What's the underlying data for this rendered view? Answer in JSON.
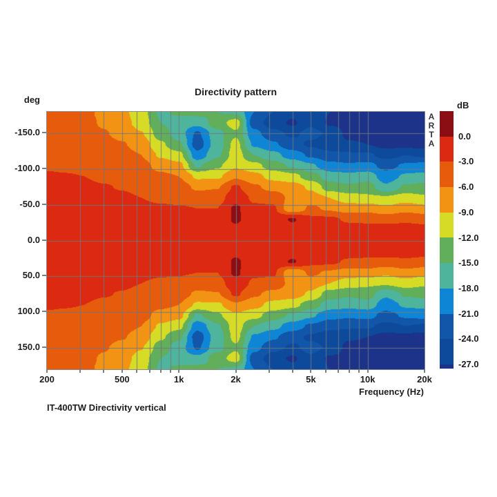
{
  "page": {
    "background": "#ffffff"
  },
  "header": {
    "title": "Directivity pattern"
  },
  "y_axis": {
    "unit_label": "deg",
    "ticks": [
      {
        "angle": -150,
        "label": "-150.0"
      },
      {
        "angle": -100,
        "label": "-100.0"
      },
      {
        "angle": -50,
        "label": "-50.0"
      },
      {
        "angle": 0,
        "label": "0.0"
      },
      {
        "angle": 50,
        "label": "50.0"
      },
      {
        "angle": 100,
        "label": "100.0"
      },
      {
        "angle": 150,
        "label": "150.0"
      }
    ]
  },
  "x_axis": {
    "label": "Frequency (Hz)",
    "ticks": [
      {
        "freq": 200,
        "label": "200"
      },
      {
        "freq": 500,
        "label": "500"
      },
      {
        "freq": 1000,
        "label": "1k"
      },
      {
        "freq": 2000,
        "label": "2k"
      },
      {
        "freq": 5000,
        "label": "5k"
      },
      {
        "freq": 10000,
        "label": "10k"
      },
      {
        "freq": 20000,
        "label": "20k"
      }
    ]
  },
  "watermark": {
    "text": "ARTA",
    "letters": [
      "A",
      "R",
      "T",
      "A"
    ],
    "color": "#333538"
  },
  "colorbar": {
    "unit_label": "dB",
    "labels": [
      "0.0",
      "-3.0",
      "-6.0",
      "-9.0",
      "-12.0",
      "-15.0",
      "-18.0",
      "-21.0",
      "-24.0",
      "-27.0"
    ],
    "segment_colors": [
      "#8B0E14",
      "#DB2912",
      "#E65C0C",
      "#F39314",
      "#D6DB25",
      "#61AE5B",
      "#4FB49C",
      "#0F86D5",
      "#1156A8",
      "#0D4A9C",
      "#1C3389"
    ]
  },
  "caption": {
    "text": "IT-400TW Directivity vertical"
  },
  "chart_data": {
    "type": "heatmap",
    "title": "Directivity pattern",
    "xlabel": "Frequency (Hz)",
    "ylabel": "deg",
    "x_scale": "log",
    "x_range_hz": [
      200,
      20000
    ],
    "y_range_deg": [
      -180,
      180
    ],
    "value_unit": "dB",
    "grid_on": true,
    "legend_position": "right",
    "bands": [
      {
        "range": "above 0",
        "color": "#8B0E14"
      },
      {
        "range": "0 to -3",
        "color": "#DB2912"
      },
      {
        "range": "-3 to -6",
        "color": "#E65C0C"
      },
      {
        "range": "-6 to -9",
        "color": "#F39314"
      },
      {
        "range": "-9 to -12",
        "color": "#D6DB25"
      },
      {
        "range": "-12 to -15",
        "color": "#61AE5B"
      },
      {
        "range": "-15 to -18",
        "color": "#4FB49C"
      },
      {
        "range": "-18 to -21",
        "color": "#0F86D5"
      },
      {
        "range": "-21 to -24",
        "color": "#1156A8"
      },
      {
        "range": "-24 to -27",
        "color": "#0D4A9C"
      },
      {
        "range": "below -27",
        "color": "#1C3389"
      }
    ],
    "freqs": [
      200,
      250,
      315,
      400,
      500,
      630,
      800,
      1000,
      1250,
      1600,
      2000,
      2500,
      3150,
      4000,
      5000,
      6300,
      8000,
      10000,
      12500,
      16000,
      20000
    ],
    "angles_deg": [
      -180,
      -165,
      -150,
      -135,
      -120,
      -105,
      -90,
      -75,
      -60,
      -45,
      -30,
      -15,
      0,
      15,
      30,
      45,
      60,
      75,
      90,
      105,
      120,
      135,
      150,
      165,
      180
    ],
    "values_db": [
      [
        -4.6,
        -5.0,
        -5.5,
        -6.5,
        -8.2,
        -10.8,
        -15.5,
        -14.5,
        -14.0,
        -15.0,
        -15.5,
        -21.0,
        -24.0,
        -26.0,
        -24.0,
        -27.0,
        -28.0,
        -28.5,
        -28.5,
        -28.5,
        -28.5
      ],
      [
        -4.5,
        -4.8,
        -5.3,
        -6.3,
        -7.8,
        -10.2,
        -15.0,
        -16.5,
        -17.0,
        -13.5,
        -10.5,
        -22.5,
        -25.5,
        -27.5,
        -24.5,
        -27.5,
        -28.0,
        -28.5,
        -28.5,
        -28.5,
        -28.5
      ],
      [
        -4.3,
        -4.6,
        -5.0,
        -5.8,
        -6.8,
        -8.8,
        -13.5,
        -16.5,
        -21.5,
        -16.0,
        -12.5,
        -20.0,
        -23.0,
        -24.5,
        -23.0,
        -24.5,
        -28.0,
        -28.5,
        -28.5,
        -28.5,
        -28.5
      ],
      [
        -4.0,
        -4.2,
        -4.5,
        -5.2,
        -5.8,
        -7.2,
        -11.5,
        -14.5,
        -22.5,
        -16.5,
        -11.0,
        -18.5,
        -20.5,
        -23.0,
        -24.5,
        -26.0,
        -26.5,
        -27.0,
        -28.0,
        -28.0,
        -28.5
      ],
      [
        -3.6,
        -3.8,
        -4.0,
        -4.5,
        -5.0,
        -6.0,
        -9.5,
        -11.0,
        -20.0,
        -15.5,
        -10.5,
        -15.0,
        -17.0,
        -19.5,
        -21.5,
        -23.0,
        -23.5,
        -23.5,
        -25.0,
        -24.0,
        -24.5
      ],
      [
        -3.2,
        -3.3,
        -3.5,
        -3.9,
        -4.3,
        -5.0,
        -7.0,
        -8.0,
        -15.5,
        -12.5,
        -9.5,
        -11.0,
        -13.5,
        -15.5,
        -17.5,
        -20.0,
        -20.5,
        -20.0,
        -22.0,
        -20.5,
        -20.0
      ],
      [
        -2.8,
        -2.9,
        -3.0,
        -3.3,
        -3.6,
        -4.2,
        -5.4,
        -6.0,
        -9.5,
        -9.5,
        -6.5,
        -8.0,
        -10.0,
        -11.0,
        -13.5,
        -16.5,
        -17.0,
        -16.5,
        -19.5,
        -17.5,
        -17.0
      ],
      [
        -2.5,
        -2.6,
        -2.7,
        -2.9,
        -3.1,
        -3.5,
        -4.2,
        -4.6,
        -6.5,
        -6.2,
        -2.5,
        -5.5,
        -7.0,
        -7.5,
        -9.5,
        -13.5,
        -14.5,
        -13.5,
        -17.5,
        -14.5,
        -14.0
      ],
      [
        -2.2,
        -2.3,
        -2.4,
        -2.5,
        -2.7,
        -3.0,
        -3.4,
        -3.6,
        -4.5,
        -4.2,
        -1.0,
        -3.5,
        -4.0,
        -7.0,
        -7.5,
        -9.0,
        -10.5,
        -11.5,
        -11.5,
        -10.5,
        -11.5
      ],
      [
        -2.0,
        -2.0,
        -2.1,
        -2.2,
        -2.3,
        -2.5,
        -2.7,
        -2.8,
        -3.0,
        -3.0,
        0.5,
        -2.5,
        -2.5,
        -8.5,
        -5.5,
        -6.5,
        -7.5,
        -7.0,
        -8.5,
        -7.0,
        -8.0
      ],
      [
        -1.7,
        -1.7,
        -1.8,
        -1.9,
        -2.0,
        -2.1,
        -2.2,
        -2.3,
        -2.4,
        -2.4,
        0.5,
        -2.0,
        -1.8,
        0.3,
        -2.2,
        -2.4,
        -3.5,
        -3.8,
        -4.0,
        -3.6,
        -4.0
      ],
      [
        -1.5,
        -1.5,
        -1.5,
        -1.6,
        -1.6,
        -1.7,
        -1.8,
        -1.8,
        -1.9,
        -1.9,
        -0.8,
        -1.5,
        -1.5,
        -1.3,
        -1.4,
        -1.4,
        -1.5,
        -1.5,
        -1.6,
        -1.6,
        -1.8
      ],
      [
        -1.5,
        -1.5,
        -1.5,
        -1.5,
        -1.5,
        -1.6,
        -1.6,
        -1.6,
        -1.7,
        -1.7,
        -1.2,
        -1.3,
        -1.3,
        -1.2,
        -1.2,
        -1.2,
        -1.2,
        -1.2,
        -1.3,
        -1.3,
        -1.4
      ],
      [
        -1.5,
        -1.5,
        -1.5,
        -1.6,
        -1.6,
        -1.7,
        -1.8,
        -1.8,
        -1.9,
        -1.9,
        -0.8,
        -1.5,
        -1.5,
        -1.3,
        -1.4,
        -1.4,
        -1.5,
        -1.5,
        -1.6,
        -1.6,
        -1.8
      ],
      [
        -1.7,
        -1.7,
        -1.8,
        -1.9,
        -2.0,
        -2.1,
        -2.2,
        -2.3,
        -2.4,
        -2.4,
        0.5,
        -2.0,
        -1.8,
        0.3,
        -2.2,
        -2.4,
        -3.5,
        -3.8,
        -4.0,
        -3.6,
        -4.0
      ],
      [
        -2.0,
        -2.0,
        -2.1,
        -2.2,
        -2.3,
        -2.5,
        -2.7,
        -2.8,
        -3.0,
        -3.0,
        0.5,
        -2.5,
        -2.5,
        -8.5,
        -5.5,
        -6.5,
        -7.5,
        -7.0,
        -8.5,
        -7.0,
        -8.0
      ],
      [
        -2.2,
        -2.3,
        -2.4,
        -2.5,
        -2.7,
        -3.0,
        -3.4,
        -3.6,
        -4.5,
        -4.2,
        -1.0,
        -3.5,
        -4.0,
        -7.0,
        -7.5,
        -9.0,
        -10.5,
        -11.5,
        -11.5,
        -10.5,
        -11.5
      ],
      [
        -2.5,
        -2.6,
        -2.7,
        -2.9,
        -3.1,
        -3.5,
        -4.2,
        -4.6,
        -6.5,
        -6.2,
        -2.5,
        -5.5,
        -7.0,
        -7.5,
        -9.5,
        -13.5,
        -14.5,
        -13.5,
        -17.5,
        -14.5,
        -14.0
      ],
      [
        -2.8,
        -2.9,
        -3.0,
        -3.3,
        -3.6,
        -4.2,
        -5.4,
        -6.0,
        -9.5,
        -9.5,
        -6.5,
        -8.0,
        -10.0,
        -11.0,
        -13.5,
        -16.5,
        -17.0,
        -16.5,
        -19.5,
        -17.5,
        -17.0
      ],
      [
        -3.2,
        -3.3,
        -3.5,
        -3.9,
        -4.3,
        -5.0,
        -7.0,
        -8.0,
        -15.5,
        -12.5,
        -9.5,
        -11.0,
        -13.5,
        -15.5,
        -17.5,
        -20.0,
        -20.5,
        -20.0,
        -22.0,
        -20.5,
        -20.0
      ],
      [
        -3.6,
        -3.8,
        -4.0,
        -4.5,
        -5.0,
        -6.0,
        -9.5,
        -11.0,
        -20.0,
        -15.5,
        -10.5,
        -15.0,
        -17.0,
        -19.5,
        -21.5,
        -23.0,
        -23.5,
        -23.5,
        -25.0,
        -24.0,
        -24.5
      ],
      [
        -4.0,
        -4.2,
        -4.5,
        -5.2,
        -5.8,
        -7.2,
        -11.5,
        -14.5,
        -22.5,
        -16.5,
        -11.0,
        -18.5,
        -20.5,
        -23.0,
        -24.5,
        -26.0,
        -26.5,
        -27.0,
        -28.0,
        -28.0,
        -28.5
      ],
      [
        -4.3,
        -4.6,
        -5.0,
        -5.8,
        -6.8,
        -8.8,
        -13.5,
        -16.5,
        -21.5,
        -16.0,
        -12.5,
        -20.0,
        -23.0,
        -24.5,
        -23.0,
        -24.5,
        -28.0,
        -28.5,
        -28.5,
        -28.5,
        -28.5
      ],
      [
        -4.5,
        -4.8,
        -5.3,
        -6.3,
        -7.8,
        -10.2,
        -15.0,
        -16.5,
        -17.0,
        -13.5,
        -10.5,
        -22.5,
        -25.5,
        -27.5,
        -24.5,
        -27.5,
        -28.0,
        -28.5,
        -28.5,
        -28.5,
        -28.5
      ],
      [
        -4.6,
        -5.0,
        -5.5,
        -6.5,
        -8.2,
        -10.8,
        -15.5,
        -14.5,
        -14.0,
        -15.0,
        -15.5,
        -21.0,
        -24.0,
        -26.0,
        -24.0,
        -27.0,
        -28.0,
        -28.5,
        -28.5,
        -28.5,
        -28.5
      ]
    ],
    "gridlines": {
      "vertical_hz": [
        300,
        400,
        500,
        600,
        700,
        800,
        900,
        1000,
        2000,
        3000,
        4000,
        5000,
        6000,
        7000,
        8000,
        9000,
        10000,
        20000
      ],
      "horizontal_deg": [
        -150,
        -100,
        -50,
        0,
        50,
        100,
        150
      ],
      "color": "#6E7882"
    }
  }
}
